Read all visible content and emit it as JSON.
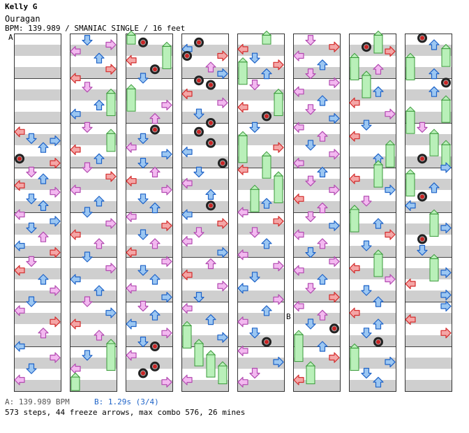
{
  "header": {
    "artist": "Kelly G",
    "title": "Ouragan",
    "bpm_line": "BPM: 139.989 / SMANIAC SINGLE / 16 feet"
  },
  "markers": {
    "a": "A",
    "b": "B"
  },
  "legend": {
    "a_label": "A: 139.989 BPM",
    "b_label": "B: 1.29s (3/4)"
  },
  "stats": "573 steps, 44 freeze arrows, max combo 576, 26 mines",
  "chart": {
    "columns": 8,
    "measures_per_column": 8,
    "lanes": [
      "left",
      "down",
      "up",
      "right"
    ],
    "colors": {
      "stripe": "#cfcfcf",
      "left_right": "#f4a6a6",
      "left_right_edge": "#d32c2c",
      "down_up": "#9cc7f2",
      "down_up_edge": "#1e63c8",
      "off_beat": "#f3b9f0",
      "off_beat_edge": "#b24ab0",
      "freeze": "#b9f0b9",
      "freeze_edge": "#3a9a3a",
      "mine": "#222222"
    },
    "notes": [
      [
        0,
        2.2,
        0,
        "r"
      ],
      [
        0,
        2.35,
        1,
        "r"
      ],
      [
        0,
        2.55,
        2,
        "b"
      ],
      [
        0,
        2.4,
        3,
        "b"
      ],
      [
        0,
        2.8,
        0,
        "m"
      ],
      [
        0,
        2.9,
        3,
        "r"
      ],
      [
        0,
        3.1,
        1,
        "p"
      ],
      [
        0,
        3.25,
        2,
        "b"
      ],
      [
        0,
        3.4,
        0,
        "r"
      ],
      [
        0,
        3.55,
        3,
        "p"
      ],
      [
        0,
        3.7,
        1,
        "b"
      ],
      [
        0,
        3.85,
        2,
        "r"
      ],
      [
        0,
        4.05,
        0,
        "p"
      ],
      [
        0,
        4.2,
        3,
        "b"
      ],
      [
        0,
        4.35,
        1,
        "r"
      ],
      [
        0,
        4.55,
        2,
        "p"
      ],
      [
        0,
        4.75,
        0,
        "b"
      ],
      [
        0,
        4.9,
        3,
        "r"
      ],
      [
        0,
        5.1,
        1,
        "p"
      ],
      [
        0,
        5.3,
        0,
        "r"
      ],
      [
        0,
        5.5,
        2,
        "b"
      ],
      [
        0,
        5.75,
        3,
        "p"
      ],
      [
        0,
        6.0,
        1,
        "b"
      ],
      [
        0,
        6.2,
        0,
        "p"
      ],
      [
        0,
        6.45,
        3,
        "r"
      ],
      [
        0,
        6.7,
        2,
        "p"
      ],
      [
        0,
        7.0,
        0,
        "b"
      ],
      [
        0,
        7.25,
        3,
        "p"
      ],
      [
        0,
        7.5,
        1,
        "r"
      ],
      [
        0,
        7.75,
        0,
        "p"
      ],
      [
        1,
        0.15,
        1,
        "b"
      ],
      [
        1,
        0.25,
        3,
        "p"
      ],
      [
        1,
        0.4,
        0,
        "p"
      ],
      [
        1,
        0.55,
        2,
        "b"
      ],
      [
        1,
        0.8,
        3,
        "r"
      ],
      [
        1,
        1.0,
        0,
        "r"
      ],
      [
        1,
        1.2,
        1,
        "p"
      ],
      [
        1,
        1.4,
        3,
        "f",
        0.5
      ],
      [
        1,
        1.6,
        2,
        "r"
      ],
      [
        1,
        1.8,
        0,
        "b"
      ],
      [
        1,
        2.1,
        1,
        "p"
      ],
      [
        1,
        2.3,
        3,
        "f",
        0.4
      ],
      [
        1,
        2.6,
        0,
        "r"
      ],
      [
        1,
        2.8,
        2,
        "b"
      ],
      [
        1,
        3.0,
        1,
        "p"
      ],
      [
        1,
        3.2,
        3,
        "r"
      ],
      [
        1,
        3.5,
        0,
        "p"
      ],
      [
        1,
        3.75,
        2,
        "r"
      ],
      [
        1,
        4.0,
        1,
        "b"
      ],
      [
        1,
        4.25,
        3,
        "p"
      ],
      [
        1,
        4.5,
        0,
        "r"
      ],
      [
        1,
        4.7,
        2,
        "p"
      ],
      [
        1,
        5.0,
        1,
        "r"
      ],
      [
        1,
        5.25,
        3,
        "p"
      ],
      [
        1,
        5.5,
        0,
        "b"
      ],
      [
        1,
        5.75,
        2,
        "r"
      ],
      [
        1,
        6.0,
        1,
        "p"
      ],
      [
        1,
        6.25,
        3,
        "b"
      ],
      [
        1,
        6.5,
        0,
        "r"
      ],
      [
        1,
        6.75,
        2,
        "p"
      ],
      [
        1,
        7.0,
        3,
        "f",
        0.6
      ],
      [
        1,
        7.2,
        1,
        "r"
      ],
      [
        1,
        7.5,
        0,
        "p"
      ],
      [
        1,
        7.75,
        0,
        "f",
        0.3
      ],
      [
        2,
        0.1,
        0,
        "f",
        0.2
      ],
      [
        2,
        0.2,
        1,
        "m"
      ],
      [
        2,
        0.35,
        3,
        "f",
        0.5
      ],
      [
        2,
        0.6,
        0,
        "r"
      ],
      [
        2,
        0.8,
        2,
        "m"
      ],
      [
        2,
        1.0,
        1,
        "b"
      ],
      [
        2,
        1.3,
        0,
        "f",
        0.5
      ],
      [
        2,
        1.6,
        3,
        "p"
      ],
      [
        2,
        1.9,
        2,
        "p"
      ],
      [
        2,
        2.15,
        2,
        "m"
      ],
      [
        2,
        2.35,
        1,
        "b"
      ],
      [
        2,
        2.55,
        0,
        "p"
      ],
      [
        2,
        2.7,
        3,
        "b"
      ],
      [
        2,
        2.9,
        1,
        "b"
      ],
      [
        2,
        3.1,
        2,
        "p"
      ],
      [
        2,
        3.3,
        0,
        "r"
      ],
      [
        2,
        3.5,
        3,
        "p"
      ],
      [
        2,
        3.7,
        1,
        "r"
      ],
      [
        2,
        3.9,
        2,
        "b"
      ],
      [
        2,
        4.1,
        0,
        "p"
      ],
      [
        2,
        4.3,
        3,
        "r"
      ],
      [
        2,
        4.5,
        1,
        "b"
      ],
      [
        2,
        4.7,
        2,
        "p"
      ],
      [
        2,
        4.9,
        0,
        "r"
      ],
      [
        2,
        5.1,
        3,
        "p"
      ],
      [
        2,
        5.3,
        1,
        "b"
      ],
      [
        2,
        5.5,
        2,
        "r"
      ],
      [
        2,
        5.7,
        0,
        "p"
      ],
      [
        2,
        5.9,
        3,
        "b"
      ],
      [
        2,
        6.1,
        1,
        "p"
      ],
      [
        2,
        6.3,
        2,
        "r"
      ],
      [
        2,
        6.5,
        0,
        "b"
      ],
      [
        2,
        6.7,
        3,
        "p"
      ],
      [
        2,
        6.9,
        1,
        "b"
      ],
      [
        2,
        7.0,
        2,
        "m"
      ],
      [
        2,
        7.2,
        0,
        "p"
      ],
      [
        2,
        7.45,
        2,
        "m"
      ],
      [
        2,
        7.6,
        1,
        "m"
      ],
      [
        2,
        7.8,
        3,
        "p"
      ],
      [
        3,
        0.2,
        1,
        "m"
      ],
      [
        3,
        0.35,
        0,
        "b"
      ],
      [
        3,
        0.5,
        3,
        "r"
      ],
      [
        3,
        0.5,
        0,
        "m"
      ],
      [
        3,
        0.75,
        2,
        "p"
      ],
      [
        3,
        0.9,
        3,
        "b"
      ],
      [
        3,
        1.05,
        1,
        "m"
      ],
      [
        3,
        1.15,
        2,
        "m"
      ],
      [
        3,
        1.35,
        0,
        "r"
      ],
      [
        3,
        1.55,
        3,
        "p"
      ],
      [
        3,
        1.8,
        1,
        "b"
      ],
      [
        3,
        2.0,
        2,
        "m"
      ],
      [
        3,
        2.2,
        1,
        "m"
      ],
      [
        3,
        2.45,
        2,
        "m"
      ],
      [
        3,
        2.65,
        0,
        "b"
      ],
      [
        3,
        2.9,
        3,
        "m"
      ],
      [
        3,
        3.1,
        1,
        "r"
      ],
      [
        3,
        3.35,
        0,
        "p"
      ],
      [
        3,
        3.6,
        2,
        "r"
      ],
      [
        3,
        3.85,
        2,
        "m"
      ],
      [
        3,
        4.05,
        0,
        "b"
      ],
      [
        3,
        4.25,
        3,
        "r"
      ],
      [
        3,
        4.45,
        1,
        "p"
      ],
      [
        3,
        4.65,
        0,
        "p"
      ],
      [
        3,
        4.9,
        3,
        "b"
      ],
      [
        3,
        5.15,
        2,
        "p"
      ],
      [
        3,
        5.4,
        0,
        "r"
      ],
      [
        3,
        5.65,
        3,
        "p"
      ],
      [
        3,
        5.9,
        1,
        "b"
      ],
      [
        3,
        6.15,
        0,
        "p"
      ],
      [
        3,
        6.4,
        2,
        "r"
      ],
      [
        3,
        6.6,
        0,
        "f",
        0.5
      ],
      [
        3,
        6.8,
        3,
        "b"
      ],
      [
        3,
        7.0,
        1,
        "f",
        0.5
      ],
      [
        3,
        7.25,
        2,
        "f",
        0.5
      ],
      [
        3,
        7.5,
        3,
        "f",
        0.4
      ],
      [
        3,
        7.75,
        0,
        "p"
      ],
      [
        4,
        0.1,
        2,
        "f",
        0.2
      ],
      [
        4,
        0.35,
        0,
        "r"
      ],
      [
        4,
        0.55,
        1,
        "b"
      ],
      [
        4,
        0.7,
        3,
        "r"
      ],
      [
        4,
        0.7,
        0,
        "f",
        0.5
      ],
      [
        4,
        0.9,
        2,
        "b"
      ],
      [
        4,
        1.15,
        1,
        "p"
      ],
      [
        4,
        1.4,
        3,
        "f",
        0.5
      ],
      [
        4,
        1.65,
        0,
        "r"
      ],
      [
        4,
        1.85,
        2,
        "m"
      ],
      [
        4,
        2.1,
        1,
        "b"
      ],
      [
        4,
        2.35,
        0,
        "f",
        0.6
      ],
      [
        4,
        2.55,
        3,
        "r"
      ],
      [
        4,
        2.8,
        2,
        "f",
        0.5
      ],
      [
        4,
        3.05,
        0,
        "r"
      ],
      [
        4,
        3.25,
        3,
        "f",
        0.6
      ],
      [
        4,
        3.55,
        1,
        "f",
        0.5
      ],
      [
        4,
        3.8,
        2,
        "b"
      ],
      [
        4,
        4.0,
        0,
        "p"
      ],
      [
        4,
        4.2,
        3,
        "r"
      ],
      [
        4,
        4.45,
        1,
        "p"
      ],
      [
        4,
        4.7,
        2,
        "b"
      ],
      [
        4,
        4.95,
        0,
        "p"
      ],
      [
        4,
        5.2,
        3,
        "p"
      ],
      [
        4,
        5.45,
        1,
        "r"
      ],
      [
        4,
        5.7,
        0,
        "b"
      ],
      [
        4,
        5.95,
        3,
        "p"
      ],
      [
        4,
        6.2,
        2,
        "r"
      ],
      [
        4,
        6.45,
        0,
        "p"
      ],
      [
        4,
        6.7,
        1,
        "b"
      ],
      [
        4,
        6.9,
        2,
        "m"
      ],
      [
        4,
        7.1,
        0,
        "p"
      ],
      [
        4,
        7.35,
        3,
        "b"
      ],
      [
        4,
        7.6,
        1,
        "p"
      ],
      [
        4,
        7.8,
        0,
        "p"
      ],
      [
        5,
        0.15,
        1,
        "p"
      ],
      [
        5,
        0.3,
        3,
        "r"
      ],
      [
        5,
        0.5,
        0,
        "p"
      ],
      [
        5,
        0.7,
        2,
        "b"
      ],
      [
        5,
        0.9,
        1,
        "p"
      ],
      [
        5,
        1.1,
        3,
        "p"
      ],
      [
        5,
        1.3,
        0,
        "p"
      ],
      [
        5,
        1.5,
        2,
        "r"
      ],
      [
        5,
        1.7,
        1,
        "p"
      ],
      [
        5,
        1.9,
        3,
        "b"
      ],
      [
        5,
        2.1,
        0,
        "p"
      ],
      [
        5,
        2.3,
        2,
        "p"
      ],
      [
        5,
        2.5,
        1,
        "r"
      ],
      [
        5,
        2.7,
        3,
        "p"
      ],
      [
        5,
        2.9,
        0,
        "p"
      ],
      [
        5,
        3.1,
        2,
        "b"
      ],
      [
        5,
        3.3,
        1,
        "p"
      ],
      [
        5,
        3.5,
        3,
        "p"
      ],
      [
        5,
        3.7,
        0,
        "r"
      ],
      [
        5,
        3.9,
        2,
        "p"
      ],
      [
        5,
        4.1,
        1,
        "p"
      ],
      [
        5,
        4.3,
        3,
        "b"
      ],
      [
        5,
        4.5,
        0,
        "p"
      ],
      [
        5,
        4.7,
        2,
        "p"
      ],
      [
        5,
        4.9,
        1,
        "r"
      ],
      [
        5,
        5.1,
        3,
        "p"
      ],
      [
        5,
        5.3,
        0,
        "p"
      ],
      [
        5,
        5.5,
        2,
        "b"
      ],
      [
        5,
        5.7,
        1,
        "p"
      ],
      [
        5,
        5.9,
        3,
        "r"
      ],
      [
        5,
        6.1,
        0,
        "p"
      ],
      [
        5,
        6.3,
        2,
        "p"
      ],
      [
        5,
        6.5,
        1,
        "b"
      ],
      [
        5,
        6.6,
        3,
        "m"
      ],
      [
        5,
        6.8,
        0,
        "f",
        0.6
      ],
      [
        5,
        7.0,
        2,
        "b"
      ],
      [
        5,
        7.25,
        3,
        "r"
      ],
      [
        5,
        7.5,
        1,
        "f",
        0.4
      ],
      [
        5,
        7.75,
        0,
        "r"
      ],
      [
        6,
        0.1,
        2,
        "f",
        0.4
      ],
      [
        6,
        0.3,
        1,
        "m"
      ],
      [
        6,
        0.4,
        3,
        "r"
      ],
      [
        6,
        0.6,
        0,
        "f",
        0.5
      ],
      [
        6,
        0.8,
        2,
        "p"
      ],
      [
        6,
        1.0,
        1,
        "f",
        0.5
      ],
      [
        6,
        1.3,
        2,
        "b"
      ],
      [
        6,
        1.55,
        0,
        "r"
      ],
      [
        6,
        1.8,
        3,
        "p"
      ],
      [
        6,
        2.05,
        1,
        "b"
      ],
      [
        6,
        2.3,
        0,
        "r"
      ],
      [
        6,
        2.55,
        3,
        "f",
        0.5
      ],
      [
        6,
        2.8,
        2,
        "b"
      ],
      [
        6,
        3.0,
        2,
        "f",
        0.5
      ],
      [
        6,
        3.25,
        0,
        "r"
      ],
      [
        6,
        3.5,
        3,
        "b"
      ],
      [
        6,
        3.75,
        1,
        "p"
      ],
      [
        6,
        4.0,
        0,
        "f",
        0.5
      ],
      [
        6,
        4.25,
        2,
        "b"
      ],
      [
        6,
        4.5,
        3,
        "r"
      ],
      [
        6,
        4.75,
        1,
        "b"
      ],
      [
        6,
        5.0,
        2,
        "f",
        0.5
      ],
      [
        6,
        5.25,
        0,
        "r"
      ],
      [
        6,
        5.5,
        3,
        "p"
      ],
      [
        6,
        5.75,
        1,
        "b"
      ],
      [
        6,
        6.0,
        2,
        "b"
      ],
      [
        6,
        6.25,
        0,
        "r"
      ],
      [
        6,
        6.5,
        2,
        "r"
      ],
      [
        6,
        6.7,
        1,
        "b"
      ],
      [
        6,
        6.9,
        2,
        "m"
      ],
      [
        6,
        7.1,
        0,
        "f",
        0.5
      ],
      [
        6,
        7.35,
        3,
        "b"
      ],
      [
        6,
        7.6,
        1,
        "r"
      ],
      [
        6,
        7.8,
        2,
        "b"
      ],
      [
        7,
        0.1,
        1,
        "m"
      ],
      [
        7,
        0.25,
        2,
        "b"
      ],
      [
        7,
        0.4,
        3,
        "f",
        0.4
      ],
      [
        7,
        0.6,
        0,
        "f",
        0.5
      ],
      [
        7,
        0.9,
        2,
        "b"
      ],
      [
        7,
        1.1,
        3,
        "m"
      ],
      [
        7,
        1.3,
        2,
        "b"
      ],
      [
        7,
        1.55,
        3,
        "f",
        0.5
      ],
      [
        7,
        1.8,
        0,
        "f",
        0.5
      ],
      [
        7,
        2.1,
        1,
        "p"
      ],
      [
        7,
        2.3,
        2,
        "f",
        0.5
      ],
      [
        7,
        2.55,
        3,
        "f",
        0.5
      ],
      [
        7,
        2.8,
        1,
        "m"
      ],
      [
        7,
        3.0,
        3,
        "b"
      ],
      [
        7,
        3.2,
        0,
        "f",
        0.5
      ],
      [
        7,
        3.45,
        2,
        "b"
      ],
      [
        7,
        3.65,
        1,
        "m"
      ],
      [
        7,
        3.85,
        0,
        "b"
      ],
      [
        7,
        4.1,
        2,
        "f",
        0.5
      ],
      [
        7,
        4.35,
        3,
        "b"
      ],
      [
        7,
        4.6,
        1,
        "m"
      ],
      [
        7,
        4.85,
        1,
        "r"
      ],
      [
        7,
        5.1,
        2,
        "f",
        0.5
      ],
      [
        7,
        5.35,
        3,
        "b"
      ],
      [
        7,
        5.6,
        0,
        "r"
      ],
      [
        7,
        5.85,
        3,
        "b"
      ],
      [
        7,
        6.1,
        3,
        "b"
      ],
      [
        7,
        6.4,
        0,
        "r"
      ],
      [
        7,
        6.7,
        3,
        "r"
      ]
    ]
  }
}
